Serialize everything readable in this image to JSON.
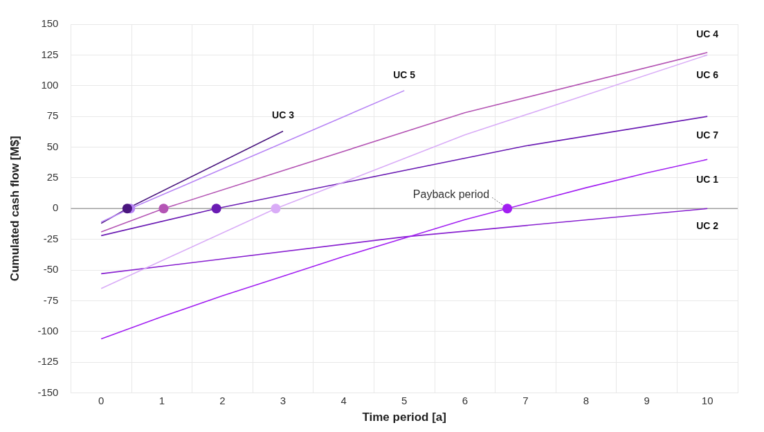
{
  "chart_data": {
    "type": "line",
    "xlabel": "Time period [a]",
    "ylabel": "Cumulated cash flow [M$]",
    "xlim": [
      -0.5,
      10.5
    ],
    "ylim": [
      -150,
      150
    ],
    "xticks": [
      {
        "value": -0.5,
        "label": null
      },
      0,
      {
        "value": 0.5,
        "label": null
      },
      1,
      {
        "value": 1.5,
        "label": null
      },
      2,
      {
        "value": 2.5,
        "label": null
      },
      3,
      {
        "value": 3.5,
        "label": null
      },
      4,
      {
        "value": 4.5,
        "label": null
      },
      5,
      {
        "value": 5.5,
        "label": null
      },
      6,
      {
        "value": 6.5,
        "label": null
      },
      7,
      {
        "value": 7.5,
        "label": null
      },
      8,
      {
        "value": 8.5,
        "label": null
      },
      9,
      {
        "value": 9.5,
        "label": null
      },
      10,
      {
        "value": 10.5,
        "label": null
      }
    ],
    "yticks": [
      -150,
      -125,
      -100,
      -75,
      -50,
      -25,
      0,
      25,
      50,
      75,
      100,
      125,
      150
    ],
    "grid": true,
    "legend": false,
    "marker": "none",
    "line_style": "solid",
    "ref_lines": [
      {
        "axis": "y",
        "value": 0,
        "color": "#a0a0a0"
      }
    ],
    "annotations": [
      {
        "text": "Payback period",
        "x": 6.7,
        "y": 0
      }
    ],
    "series": [
      {
        "name": "UC 4",
        "color": "#b455b4",
        "x": [
          0,
          1.03,
          6,
          10
        ],
        "values": [
          -19,
          0,
          78,
          127
        ]
      },
      {
        "name": "UC 6",
        "color": "#d9acf7",
        "x": [
          0,
          2.88,
          6,
          10
        ],
        "values": [
          -65,
          0,
          60,
          125
        ]
      },
      {
        "name": "UC 5",
        "color": "#b784f5",
        "x": [
          0,
          0.48,
          5
        ],
        "values": [
          -11,
          0,
          96
        ]
      },
      {
        "name": "UC 3",
        "color": "#4a167e",
        "x": [
          0,
          0.43,
          3
        ],
        "values": [
          -12,
          0,
          63
        ]
      },
      {
        "name": "UC 7",
        "color": "#6a1bb3",
        "x": [
          0,
          1.9,
          7,
          10
        ],
        "values": [
          -22,
          0,
          51,
          75
        ]
      },
      {
        "name": "UC 1",
        "color": "#a21ff2",
        "x": [
          0,
          1,
          2,
          3,
          4,
          5,
          6,
          6.7,
          7,
          8,
          9,
          10
        ],
        "values": [
          -106,
          -88,
          -71,
          -55,
          -39,
          -24,
          -9,
          0,
          4,
          17,
          29,
          40
        ]
      },
      {
        "name": "UC 2",
        "color": "#8820d0",
        "x": [
          0,
          5,
          10
        ],
        "values": [
          -53,
          -23,
          0
        ]
      },
      {
        "type": "scatter",
        "marker": "circle",
        "x": [
          1.03,
          2.88,
          0.48,
          0.43,
          1.9,
          6.7
        ],
        "values": [
          0,
          0,
          0,
          0,
          0,
          0
        ],
        "colors": [
          "#b455b4",
          "#d9acf7",
          "#b784f5",
          "#4a167e",
          "#6a1bb3",
          "#a21ff2"
        ]
      }
    ]
  }
}
